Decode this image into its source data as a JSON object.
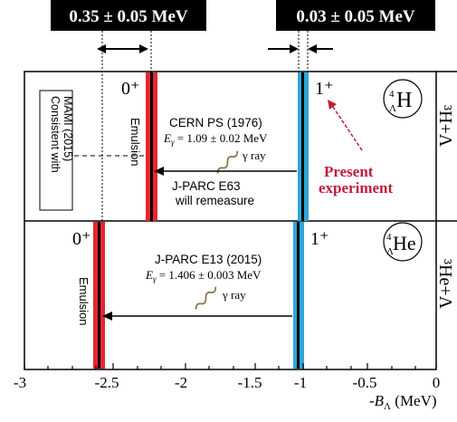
{
  "header": {
    "left_box": "0.35 ± 0.05 MeV",
    "right_box": "0.03 ± 0.05 MeV"
  },
  "top_panel": {
    "state_0": "0⁺",
    "state_1": "1⁺",
    "nucleus_sup": "4",
    "nucleus_sub": "Λ",
    "nucleus": "H",
    "side_label": "³H+Λ",
    "consistent_box": [
      "Consistent with",
      "MAMI (2015)"
    ],
    "emulsion": "Emulsion",
    "cern_title": "CERN PS (1976)",
    "cern_energy_var": "E",
    "cern_energy_sub": "γ",
    "cern_energy_val": " = 1.09 ± 0.02 MeV",
    "gamma": "γ ray",
    "jparc_e63": [
      "J-PARC E63",
      "will remeasure"
    ],
    "present": [
      "Present",
      "experiment"
    ]
  },
  "bottom_panel": {
    "state_0": "0⁺",
    "state_1": "1⁺",
    "nucleus_sup": "4",
    "nucleus_sub": "Λ",
    "nucleus": "He",
    "side_label": "³He+Λ",
    "emulsion": "Emulsion",
    "e13_title": "J-PARC E13 (2015)",
    "e13_energy_var": "E",
    "e13_energy_sub": "γ",
    "e13_energy_val": " = 1.406 ± 0.003 MeV",
    "gamma": "γ ray"
  },
  "axis": {
    "ticks": [
      "-3",
      "-2.5",
      "-2",
      "-1.5",
      "-1",
      "-0.5",
      "0"
    ],
    "label_main": "-B",
    "label_sub": "Λ",
    "label_unit": " (MeV)"
  },
  "colors": {
    "red_line": "#e8262d",
    "blue_line": "#2fa6d8",
    "present_red": "#c21d3a",
    "header_bg": "#000000",
    "header_text": "#ffffff"
  }
}
